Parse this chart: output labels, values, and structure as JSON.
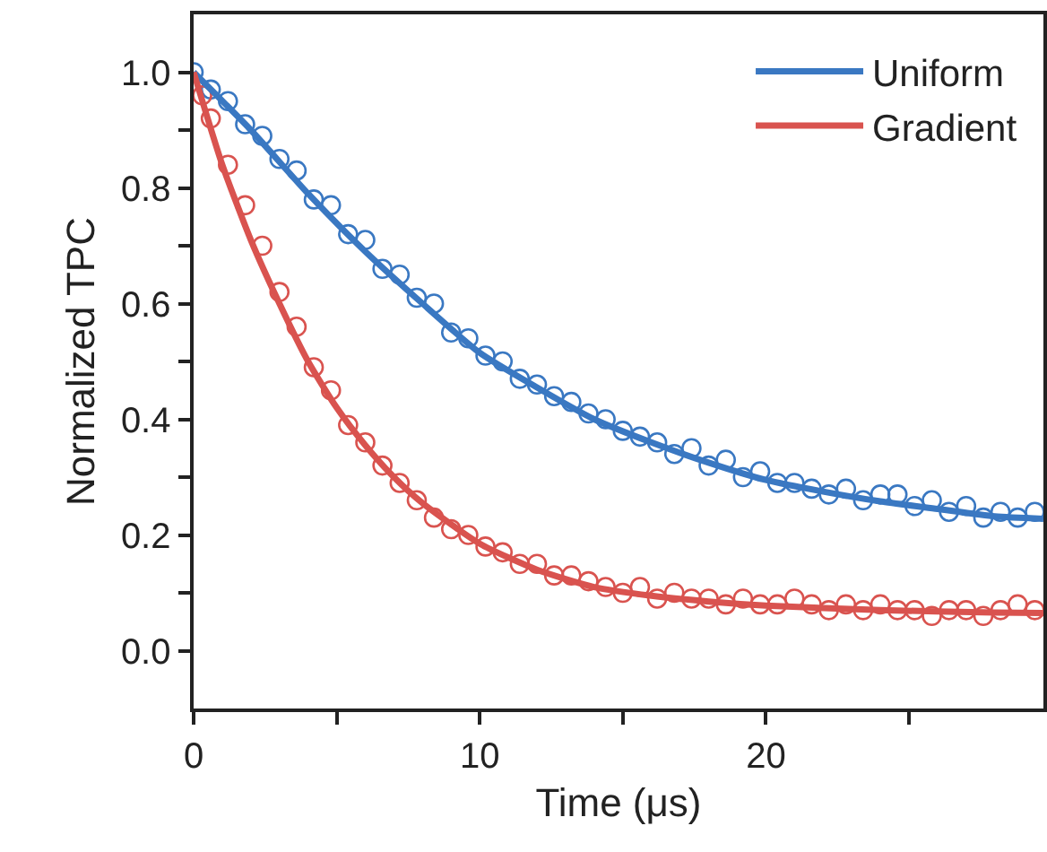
{
  "chart_data": {
    "type": "scatter",
    "xlabel": "Time (μs)",
    "ylabel": "Normalized TPC",
    "xlim": [
      0,
      29.7
    ],
    "ylim": [
      -0.1,
      1.1
    ],
    "xticks": [
      0,
      {
        "value": 5,
        "label": null
      },
      10,
      {
        "value": 15,
        "label": null
      },
      20,
      {
        "value": 25,
        "label": null
      }
    ],
    "yticks": [
      {
        "value": 0,
        "label": "0.0"
      },
      {
        "value": 0.1,
        "label": null
      },
      {
        "value": 0.2,
        "label": "0.2"
      },
      {
        "value": 0.3,
        "label": null
      },
      {
        "value": 0.4,
        "label": "0.4"
      },
      {
        "value": 0.5,
        "label": null
      },
      {
        "value": 0.6,
        "label": "0.6"
      },
      {
        "value": 0.7,
        "label": null
      },
      {
        "value": 0.8,
        "label": "0.8"
      },
      {
        "value": 0.9,
        "label": null
      },
      {
        "value": 1.0,
        "label": "1.0"
      }
    ],
    "grid": false,
    "legend": "top right",
    "series": [
      {
        "type": "scatter",
        "marker": "circle",
        "color": "#3a78c2",
        "x": [
          0,
          0.6,
          1.2,
          1.8,
          2.4,
          3.0,
          3.6,
          4.2,
          4.8,
          5.4,
          6.0,
          6.6,
          7.2,
          7.8,
          8.4,
          9.0,
          9.6,
          10.2,
          10.8,
          11.4,
          12.0,
          12.6,
          13.2,
          13.8,
          14.4,
          15.0,
          15.6,
          16.2,
          16.8,
          17.4,
          18.0,
          18.6,
          19.2,
          19.8,
          20.4,
          21.0,
          21.6,
          22.2,
          22.8,
          23.4,
          24.0,
          24.6,
          25.2,
          25.8,
          26.4,
          27.0,
          27.6,
          28.2,
          28.8,
          29.4
        ],
        "values": [
          1.0,
          0.97,
          0.95,
          0.91,
          0.89,
          0.85,
          0.83,
          0.78,
          0.77,
          0.72,
          0.71,
          0.66,
          0.65,
          0.61,
          0.6,
          0.55,
          0.54,
          0.51,
          0.5,
          0.47,
          0.46,
          0.44,
          0.43,
          0.41,
          0.4,
          0.38,
          0.37,
          0.36,
          0.34,
          0.35,
          0.32,
          0.33,
          0.3,
          0.31,
          0.29,
          0.29,
          0.28,
          0.27,
          0.28,
          0.26,
          0.27,
          0.27,
          0.25,
          0.26,
          0.24,
          0.25,
          0.23,
          0.24,
          0.23,
          0.24
        ]
      },
      {
        "type": "scatter",
        "marker": "circle",
        "color": "#d9534f",
        "x": [
          0.3,
          0.6,
          1.2,
          1.8,
          2.4,
          3.0,
          3.6,
          4.2,
          4.8,
          5.4,
          6.0,
          6.6,
          7.2,
          7.8,
          8.4,
          9.0,
          9.6,
          10.2,
          10.8,
          11.4,
          12.0,
          12.6,
          13.2,
          13.8,
          14.4,
          15.0,
          15.6,
          16.2,
          16.8,
          17.4,
          18.0,
          18.6,
          19.2,
          19.8,
          20.4,
          21.0,
          21.6,
          22.2,
          22.8,
          23.4,
          24.0,
          24.6,
          25.2,
          25.8,
          26.4,
          27.0,
          27.6,
          28.2,
          28.8,
          29.4
        ],
        "values": [
          0.96,
          0.92,
          0.84,
          0.77,
          0.7,
          0.62,
          0.56,
          0.49,
          0.45,
          0.39,
          0.36,
          0.32,
          0.29,
          0.26,
          0.23,
          0.21,
          0.2,
          0.18,
          0.17,
          0.15,
          0.15,
          0.13,
          0.13,
          0.12,
          0.11,
          0.1,
          0.11,
          0.09,
          0.1,
          0.09,
          0.09,
          0.08,
          0.09,
          0.08,
          0.08,
          0.09,
          0.08,
          0.07,
          0.08,
          0.07,
          0.08,
          0.07,
          0.07,
          0.06,
          0.07,
          0.07,
          0.06,
          0.07,
          0.08,
          0.07
        ]
      },
      {
        "type": "line",
        "name": "Uniform",
        "marker": "none",
        "line_style": "solid",
        "color": "#3a78c2",
        "x": [
          0,
          2,
          4,
          6,
          8,
          10,
          12,
          14,
          16,
          18,
          20,
          22,
          24,
          26,
          28,
          29.7
        ],
        "values": [
          1.0,
          0.9,
          0.79,
          0.69,
          0.6,
          0.515,
          0.455,
          0.4,
          0.36,
          0.325,
          0.295,
          0.275,
          0.258,
          0.245,
          0.232,
          0.228
        ]
      },
      {
        "type": "line",
        "name": "Gradient",
        "marker": "none",
        "line_style": "solid",
        "color": "#d9534f",
        "x": [
          0,
          1,
          2,
          3,
          4,
          5,
          6,
          7,
          8,
          10,
          12,
          14,
          16,
          18,
          20,
          24,
          28,
          29.7
        ],
        "values": [
          1.0,
          0.84,
          0.71,
          0.6,
          0.5,
          0.42,
          0.355,
          0.3,
          0.255,
          0.185,
          0.14,
          0.11,
          0.095,
          0.085,
          0.078,
          0.07,
          0.066,
          0.065
        ]
      }
    ]
  }
}
